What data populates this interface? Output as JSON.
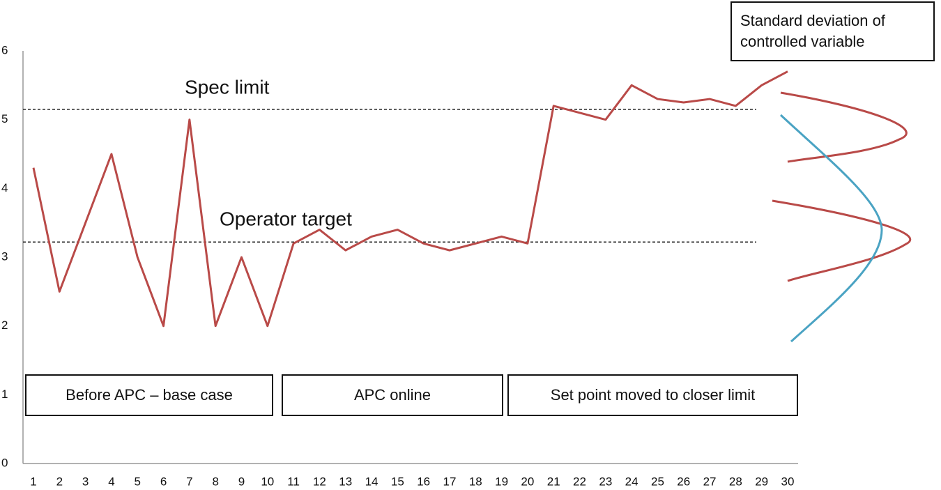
{
  "chart_data": {
    "type": "line",
    "categories": [
      "1",
      "2",
      "3",
      "4",
      "5",
      "6",
      "7",
      "8",
      "9",
      "10",
      "11",
      "12",
      "13",
      "14",
      "15",
      "16",
      "17",
      "18",
      "19",
      "20",
      "21",
      "22",
      "23",
      "24",
      "25",
      "26",
      "27",
      "28",
      "29",
      "30"
    ],
    "series": [
      {
        "name": "Controlled variable",
        "color": "#b94a48",
        "values": [
          4.3,
          2.5,
          3.5,
          4.5,
          3.0,
          2.0,
          5.0,
          2.0,
          3.0,
          2.0,
          3.2,
          3.4,
          3.1,
          3.3,
          3.4,
          3.2,
          3.1,
          3.2,
          3.3,
          3.2,
          5.2,
          5.1,
          5.0,
          5.5,
          5.3,
          5.25,
          5.3,
          5.2,
          5.5,
          5.7
        ]
      }
    ],
    "ylim": [
      0,
      6
    ],
    "yticks": [
      0,
      1,
      2,
      3,
      4,
      5,
      6
    ],
    "grid": false,
    "reference_lines": [
      {
        "label": "Spec limit",
        "value": 5.15
      },
      {
        "label": "Operator target",
        "value": 3.22
      }
    ],
    "phases": [
      "Before APC – base case",
      "APC online",
      "Set point moved to closer limit"
    ],
    "note": "Standard deviation of controlled variable"
  }
}
